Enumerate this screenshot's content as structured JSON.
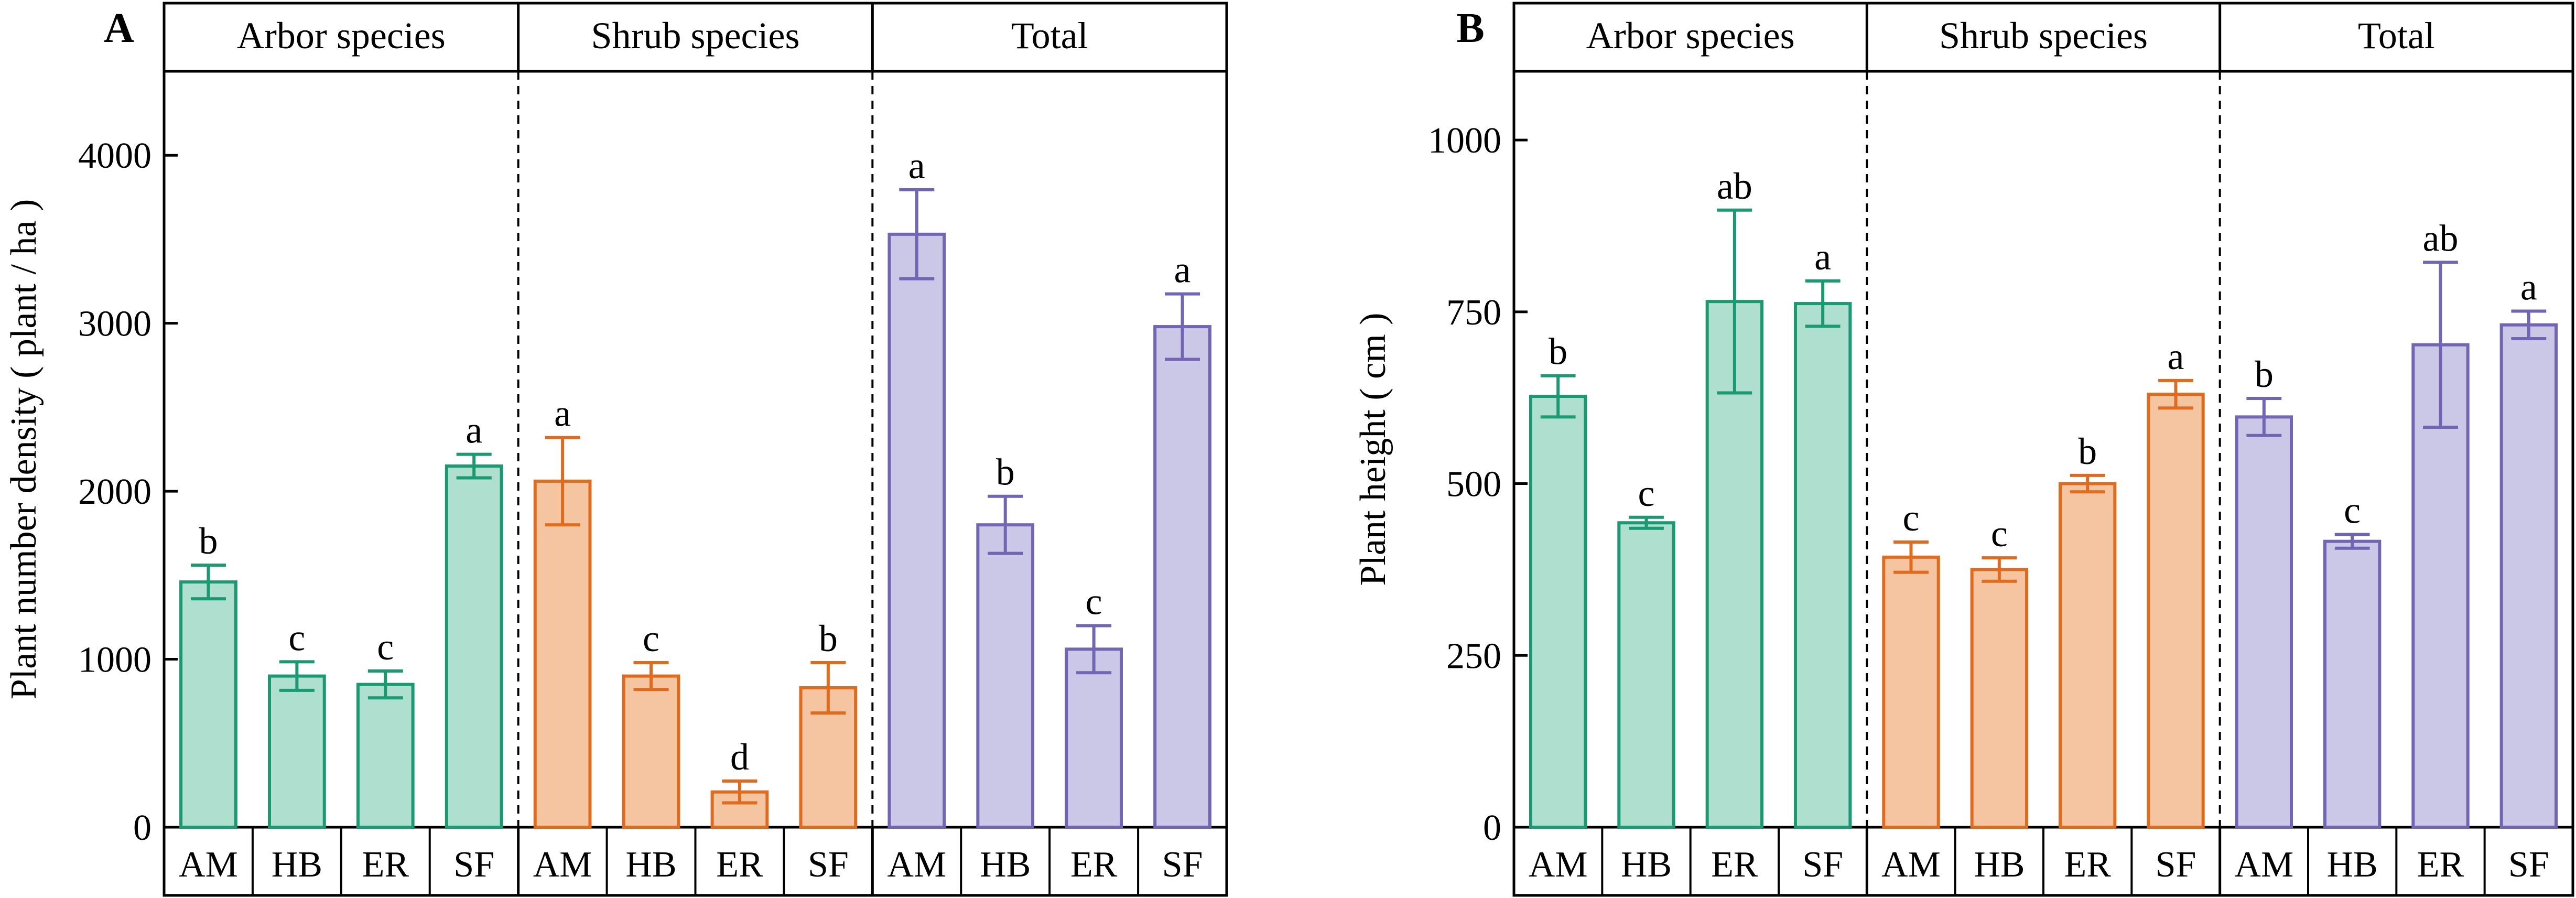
{
  "colors": {
    "arbor": {
      "fill": "#afdfcf",
      "stroke": "#1a9a70"
    },
    "shrub": {
      "fill": "#f5c5a2",
      "stroke": "#e06b1c"
    },
    "total": {
      "fill": "#cac8e6",
      "stroke": "#7265b4"
    }
  },
  "chart_data": [
    {
      "type": "bar",
      "panel_label": "A",
      "ylabel": "Plant number density ( plant / ha )",
      "ylim": [
        0,
        4500
      ],
      "yticks": [
        0,
        1000,
        2000,
        3000,
        4000
      ],
      "categories": [
        "AM",
        "HB",
        "ER",
        "SF"
      ],
      "groups": [
        {
          "name": "Arbor species",
          "color_key": "arbor",
          "values": [
            1460,
            900,
            850,
            2150
          ],
          "errors": [
            100,
            85,
            80,
            70
          ],
          "letters": [
            "b",
            "c",
            "c",
            "a"
          ]
        },
        {
          "name": "Shrub species",
          "color_key": "shrub",
          "values": [
            2060,
            900,
            210,
            830
          ],
          "errors": [
            260,
            80,
            65,
            150
          ],
          "letters": [
            "a",
            "c",
            "d",
            "b"
          ]
        },
        {
          "name": "Total",
          "color_key": "total",
          "values": [
            3530,
            1800,
            1060,
            2980
          ],
          "errors": [
            265,
            170,
            140,
            195
          ],
          "letters": [
            "a",
            "b",
            "c",
            "a"
          ]
        }
      ]
    },
    {
      "type": "bar",
      "panel_label": "B",
      "ylabel": "Plant height ( cm )",
      "ylim": [
        0,
        1100
      ],
      "yticks": [
        0,
        250,
        500,
        750,
        1000
      ],
      "categories": [
        "AM",
        "HB",
        "ER",
        "SF"
      ],
      "groups": [
        {
          "name": "Arbor species",
          "color_key": "arbor",
          "values": [
            627,
            443,
            765,
            762
          ],
          "errors": [
            30,
            8,
            133,
            33
          ],
          "letters": [
            "b",
            "c",
            "ab",
            "a"
          ]
        },
        {
          "name": "Shrub species",
          "color_key": "shrub",
          "values": [
            393,
            375,
            500,
            630
          ],
          "errors": [
            22,
            17,
            12,
            20
          ],
          "letters": [
            "c",
            "c",
            "b",
            "a"
          ]
        },
        {
          "name": "Total",
          "color_key": "total",
          "values": [
            597,
            416,
            702,
            731
          ],
          "errors": [
            27,
            10,
            120,
            20
          ],
          "letters": [
            "b",
            "c",
            "ab",
            "a"
          ]
        }
      ]
    }
  ]
}
